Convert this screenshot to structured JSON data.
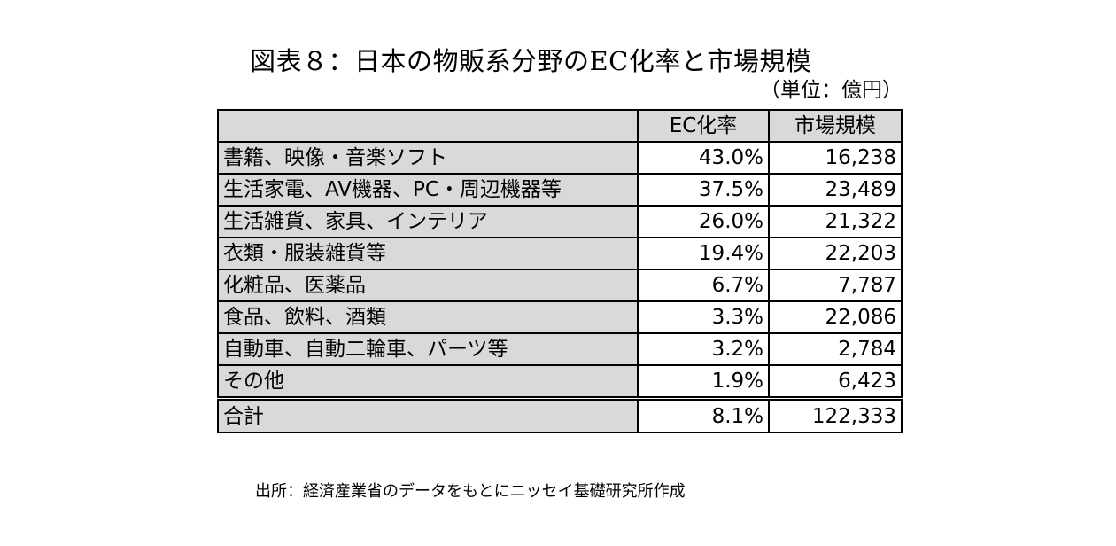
{
  "title": "図表８：日本の物販系分野のEC化率と市場規模",
  "unit": "（単位：億円）",
  "source": "出所：経済産業省のデータをもとにニッセイ基礎研究所作成",
  "chart_data": {
    "type": "table",
    "columns": [
      "",
      "EC化率",
      "市場規模"
    ],
    "rows": [
      {
        "category": "書籍、映像・音楽ソフト",
        "ec_rate": "43.0%",
        "market_size": "16,238"
      },
      {
        "category": "生活家電、AV機器、PC・周辺機器等",
        "ec_rate": "37.5%",
        "market_size": "23,489"
      },
      {
        "category": "生活雑貨、家具、インテリア",
        "ec_rate": "26.0%",
        "market_size": "21,322"
      },
      {
        "category": "衣類・服装雑貨等",
        "ec_rate": "19.4%",
        "market_size": "22,203"
      },
      {
        "category": "化粧品、医薬品",
        "ec_rate": "6.7%",
        "market_size": "7,787"
      },
      {
        "category": "食品、飲料、酒類",
        "ec_rate": "3.3%",
        "market_size": "22,086"
      },
      {
        "category": "自動車、自動二輪車、パーツ等",
        "ec_rate": "3.2%",
        "market_size": "2,784"
      },
      {
        "category": "その他",
        "ec_rate": "1.9%",
        "market_size": "6,423"
      }
    ],
    "total": {
      "category": "合計",
      "ec_rate": "8.1%",
      "market_size": "122,333"
    }
  }
}
